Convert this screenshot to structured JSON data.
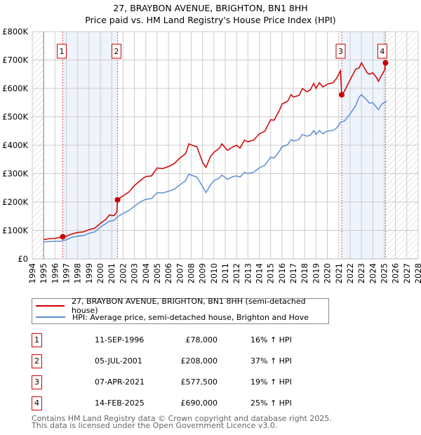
{
  "title": "27, BRAYBON AVENUE, BRIGHTON, BN1 8HH",
  "subtitle": "Price paid vs. HM Land Registry's House Price Index (HPI)",
  "colors": {
    "property": "#cc0000",
    "hpi": "#5b8fd4",
    "shade": "#eef3fc",
    "grid": "#cccccc"
  },
  "chart_data": {
    "type": "line",
    "xlim": [
      1994,
      2028
    ],
    "ylim": [
      0,
      800000
    ],
    "x_ticks": [
      "1994",
      "1995",
      "1996",
      "1997",
      "1998",
      "1999",
      "2000",
      "2001",
      "2002",
      "2003",
      "2004",
      "2005",
      "2006",
      "2007",
      "2008",
      "2009",
      "2010",
      "2011",
      "2012",
      "2013",
      "2014",
      "2015",
      "2016",
      "2017",
      "2018",
      "2019",
      "2020",
      "2021",
      "2022",
      "2023",
      "2024",
      "2025",
      "2026",
      "2027",
      "2028"
    ],
    "y_ticks": [
      {
        "v": 0,
        "label": "£0"
      },
      {
        "v": 100000,
        "label": "£100K"
      },
      {
        "v": 200000,
        "label": "£200K"
      },
      {
        "v": 300000,
        "label": "£300K"
      },
      {
        "v": 400000,
        "label": "£400K"
      },
      {
        "v": 500000,
        "label": "£500K"
      },
      {
        "v": 600000,
        "label": "£600K"
      },
      {
        "v": 700000,
        "label": "£700K"
      },
      {
        "v": 800000,
        "label": "£800K"
      }
    ],
    "grid": true,
    "hatched_ranges": [
      [
        1994,
        1995
      ],
      [
        2025.12,
        2028
      ]
    ],
    "shaded_ranges": [
      [
        1996.69,
        2001.51
      ],
      [
        2021.26,
        2025.12
      ]
    ],
    "series": [
      {
        "name": "27, BRAYBON AVENUE, BRIGHTON, BN1 8HH (semi-detached house)",
        "color": "#cc0000",
        "x": [
          1995,
          1995.5,
          1996,
          1996.69,
          1997,
          1997.5,
          1998,
          1998.5,
          1999,
          1999.5,
          2000,
          2000.5,
          2000.8,
          2001.2,
          2001.45,
          2001.51,
          2002,
          2002.5,
          2003,
          2003.5,
          2004,
          2004.5,
          2005,
          2005.5,
          2006,
          2006.5,
          2007,
          2007.5,
          2007.8,
          2008.2,
          2008.5,
          2009,
          2009.3,
          2009.7,
          2010,
          2010.5,
          2010.7,
          2011.2,
          2011.7,
          2012,
          2012.3,
          2012.7,
          2013,
          2013.5,
          2014,
          2014.5,
          2015,
          2015.3,
          2015.8,
          2016,
          2016.5,
          2016.8,
          2017,
          2017.5,
          2017.8,
          2018.2,
          2018.5,
          2018.8,
          2019,
          2019.3,
          2019.6,
          2020,
          2020.5,
          2020.8,
          2021.15,
          2021.26,
          2021.5,
          2022,
          2022.5,
          2022.8,
          2023,
          2023.5,
          2023.7,
          2024,
          2024.3,
          2024.5,
          2024.8,
          2025.05,
          2025.12
        ],
        "y": [
          68000,
          71000,
          72000,
          78000,
          80000,
          88000,
          93000,
          95000,
          103000,
          108000,
          125000,
          140000,
          155000,
          152000,
          165000,
          208000,
          222000,
          235000,
          258000,
          275000,
          290000,
          292000,
          320000,
          318000,
          325000,
          335000,
          355000,
          370000,
          405000,
          398000,
          395000,
          340000,
          322000,
          360000,
          375000,
          390000,
          405000,
          382000,
          395000,
          400000,
          390000,
          418000,
          412000,
          418000,
          440000,
          450000,
          490000,
          488000,
          525000,
          545000,
          555000,
          578000,
          570000,
          575000,
          600000,
          588000,
          595000,
          618000,
          600000,
          620000,
          605000,
          615000,
          620000,
          635000,
          662000,
          577500,
          590000,
          630000,
          668000,
          672000,
          690000,
          655000,
          650000,
          655000,
          640000,
          625000,
          648000,
          665000,
          690000
        ]
      },
      {
        "name": "HPI: Average price, semi-detached house, Brighton and Hove",
        "color": "#5b8fd4",
        "x": [
          1995,
          1996,
          1996.5,
          1997,
          1997.5,
          1998,
          1998.5,
          1999,
          1999.5,
          2000,
          2000.5,
          2000.8,
          2001.2,
          2001.5,
          2002,
          2002.5,
          2003,
          2003.5,
          2004,
          2004.5,
          2005,
          2005.5,
          2006,
          2006.5,
          2007,
          2007.5,
          2007.8,
          2008.2,
          2008.5,
          2009,
          2009.3,
          2009.7,
          2010,
          2010.5,
          2010.7,
          2011.2,
          2011.7,
          2012,
          2012.3,
          2012.7,
          2013,
          2013.5,
          2014,
          2014.5,
          2015,
          2015.3,
          2015.8,
          2016,
          2016.5,
          2016.8,
          2017,
          2017.5,
          2017.8,
          2018.2,
          2018.5,
          2018.8,
          2019,
          2019.3,
          2019.6,
          2020,
          2020.5,
          2020.8,
          2021.2,
          2021.5,
          2022,
          2022.5,
          2022.8,
          2023,
          2023.5,
          2023.7,
          2024,
          2024.5,
          2024.8,
          2025.2
        ],
        "y": [
          60000,
          62000,
          62000,
          67000,
          76000,
          80000,
          82000,
          90000,
          95000,
          112000,
          125000,
          133000,
          135000,
          148000,
          160000,
          170000,
          185000,
          200000,
          210000,
          212000,
          233000,
          232000,
          238000,
          245000,
          260000,
          275000,
          298000,
          292000,
          288000,
          255000,
          233000,
          260000,
          275000,
          285000,
          295000,
          280000,
          290000,
          292000,
          288000,
          305000,
          300000,
          305000,
          320000,
          330000,
          358000,
          355000,
          380000,
          395000,
          402000,
          420000,
          415000,
          420000,
          438000,
          432000,
          435000,
          452000,
          438000,
          452000,
          440000,
          450000,
          452000,
          460000,
          482000,
          485000,
          510000,
          540000,
          570000,
          578000,
          558000,
          548000,
          550000,
          525000,
          545000,
          555000
        ]
      }
    ],
    "sales": [
      {
        "n": "1",
        "x": 1996.69,
        "y": 78000,
        "date": "11-SEP-1996",
        "price": "£78,000",
        "hpi": "16% ↑ HPI"
      },
      {
        "n": "2",
        "x": 2001.51,
        "y": 208000,
        "date": "05-JUL-2001",
        "price": "£208,000",
        "hpi": "37% ↑ HPI"
      },
      {
        "n": "3",
        "x": 2021.26,
        "y": 577500,
        "date": "07-APR-2021",
        "price": "£577,500",
        "hpi": "19% ↑ HPI"
      },
      {
        "n": "4",
        "x": 2025.12,
        "y": 690000,
        "date": "14-FEB-2025",
        "price": "£690,000",
        "hpi": "25% ↑ HPI"
      }
    ]
  },
  "footer": [
    "Contains HM Land Registry data © Crown copyright and database right 2025.",
    "This data is licensed under the Open Government Licence v3.0."
  ]
}
